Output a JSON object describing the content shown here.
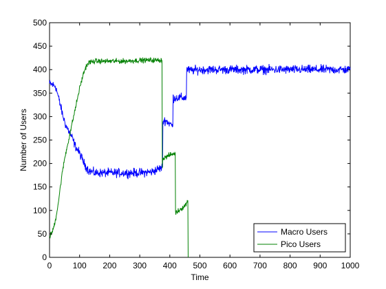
{
  "chart_data": {
    "type": "line",
    "title": "",
    "xlabel": "Time",
    "ylabel": "Number of Users",
    "xlim": [
      0,
      1000
    ],
    "ylim": [
      0,
      500
    ],
    "xticks": [
      0,
      100,
      200,
      300,
      400,
      500,
      600,
      700,
      800,
      900,
      1000
    ],
    "yticks": [
      0,
      50,
      100,
      150,
      200,
      250,
      300,
      350,
      400,
      450,
      500
    ],
    "grid": false,
    "legend_position": "bottom-right",
    "series": [
      {
        "name": "Macro Users",
        "color": "#0000ff",
        "noise": 14,
        "points": [
          [
            0,
            370
          ],
          [
            20,
            365
          ],
          [
            30,
            340
          ],
          [
            45,
            300
          ],
          [
            55,
            280
          ],
          [
            65,
            268
          ],
          [
            75,
            255
          ],
          [
            85,
            238
          ],
          [
            100,
            222
          ],
          [
            115,
            200
          ],
          [
            130,
            185
          ],
          [
            150,
            180
          ],
          [
            200,
            180
          ],
          [
            250,
            180
          ],
          [
            300,
            180
          ],
          [
            340,
            182
          ],
          [
            376,
            192
          ],
          [
            377,
            290
          ],
          [
            385,
            292
          ],
          [
            400,
            285
          ],
          [
            410,
            280
          ],
          [
            411,
            340
          ],
          [
            430,
            340
          ],
          [
            455,
            340
          ],
          [
            456,
            400
          ],
          [
            470,
            398
          ],
          [
            500,
            400
          ],
          [
            600,
            400
          ],
          [
            700,
            400
          ],
          [
            800,
            400
          ],
          [
            900,
            400
          ],
          [
            1000,
            400
          ]
        ]
      },
      {
        "name": "Pico Users",
        "color": "#008000",
        "noise": 8,
        "points": [
          [
            0,
            45
          ],
          [
            10,
            55
          ],
          [
            20,
            80
          ],
          [
            30,
            120
          ],
          [
            40,
            170
          ],
          [
            50,
            210
          ],
          [
            60,
            240
          ],
          [
            70,
            270
          ],
          [
            80,
            300
          ],
          [
            90,
            330
          ],
          [
            100,
            360
          ],
          [
            110,
            385
          ],
          [
            120,
            405
          ],
          [
            130,
            415
          ],
          [
            150,
            418
          ],
          [
            200,
            418
          ],
          [
            250,
            418
          ],
          [
            300,
            420
          ],
          [
            340,
            420
          ],
          [
            374,
            420
          ],
          [
            375,
            190
          ],
          [
            376,
            210
          ],
          [
            400,
            218
          ],
          [
            418,
            222
          ],
          [
            419,
            95
          ],
          [
            430,
            100
          ],
          [
            450,
            110
          ],
          [
            460,
            120
          ],
          [
            461,
            0
          ]
        ]
      }
    ]
  }
}
